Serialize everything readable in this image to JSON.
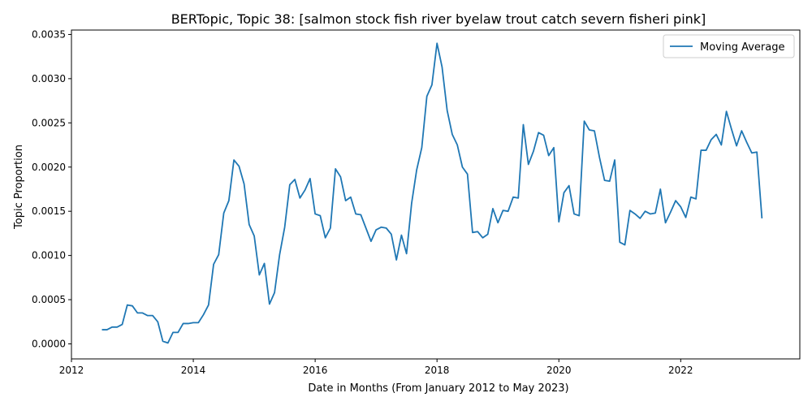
{
  "chart_data": {
    "type": "line",
    "title": "BERTopic, Topic 38: [salmon stock fish river byelaw trout catch severn fisheri pink]",
    "xlabel": "Date in Months (From January 2012 to May 2023)",
    "ylabel": "Topic Proportion",
    "xlim": [
      "2012-01-01",
      "2023-12-15"
    ],
    "ylim": [
      -0.00017,
      0.00355
    ],
    "x_ticks": [
      "2012",
      "2014",
      "2016",
      "2018",
      "2020",
      "2022"
    ],
    "y_ticks": [
      "0.0000",
      "0.0005",
      "0.0010",
      "0.0015",
      "0.0020",
      "0.0025",
      "0.0030",
      "0.0035"
    ],
    "grid": false,
    "legend": {
      "position": "top-right",
      "entries": [
        "Moving Average"
      ]
    },
    "series": [
      {
        "name": "Moving Average",
        "color": "#1f77b4",
        "x": [
          "2012-07",
          "2012-08",
          "2012-09",
          "2012-10",
          "2012-11",
          "2012-12",
          "2013-01",
          "2013-02",
          "2013-03",
          "2013-04",
          "2013-05",
          "2013-06",
          "2013-07",
          "2013-08",
          "2013-09",
          "2013-10",
          "2013-11",
          "2013-12",
          "2014-01",
          "2014-02",
          "2014-03",
          "2014-04",
          "2014-05",
          "2014-06",
          "2014-07",
          "2014-08",
          "2014-09",
          "2014-10",
          "2014-11",
          "2014-12",
          "2015-01",
          "2015-02",
          "2015-03",
          "2015-04",
          "2015-05",
          "2015-06",
          "2015-07",
          "2015-08",
          "2015-09",
          "2015-10",
          "2015-11",
          "2015-12",
          "2016-01",
          "2016-02",
          "2016-03",
          "2016-04",
          "2016-05",
          "2016-06",
          "2016-07",
          "2016-08",
          "2016-09",
          "2016-10",
          "2016-11",
          "2016-12",
          "2017-01",
          "2017-02",
          "2017-03",
          "2017-04",
          "2017-05",
          "2017-06",
          "2017-07",
          "2017-08",
          "2017-09",
          "2017-10",
          "2017-11",
          "2017-12",
          "2018-01",
          "2018-02",
          "2018-03",
          "2018-04",
          "2018-05",
          "2018-06",
          "2018-07",
          "2018-08",
          "2018-09",
          "2018-10",
          "2018-11",
          "2018-12",
          "2019-01",
          "2019-02",
          "2019-03",
          "2019-04",
          "2019-05",
          "2019-06",
          "2019-07",
          "2019-08",
          "2019-09",
          "2019-10",
          "2019-11",
          "2019-12",
          "2020-01",
          "2020-02",
          "2020-03",
          "2020-04",
          "2020-05",
          "2020-06",
          "2020-07",
          "2020-08",
          "2020-09",
          "2020-10",
          "2020-11",
          "2020-12",
          "2021-01",
          "2021-02",
          "2021-03",
          "2021-04",
          "2021-05",
          "2021-06",
          "2021-07",
          "2021-08",
          "2021-09",
          "2021-10",
          "2021-11",
          "2021-12",
          "2022-01",
          "2022-02",
          "2022-03",
          "2022-04",
          "2022-05",
          "2022-06",
          "2022-07",
          "2022-08",
          "2022-09",
          "2022-10",
          "2022-11",
          "2022-12",
          "2023-01",
          "2023-02",
          "2023-03",
          "2023-04",
          "2023-05"
        ],
        "y": [
          0.00016,
          0.00016,
          0.00019,
          0.00019,
          0.00022,
          0.00044,
          0.00043,
          0.00035,
          0.00035,
          0.00032,
          0.00032,
          0.00025,
          3e-05,
          1e-05,
          0.00013,
          0.00013,
          0.00023,
          0.00023,
          0.00024,
          0.00024,
          0.00033,
          0.00044,
          0.0009,
          0.00101,
          0.00148,
          0.00162,
          0.00208,
          0.00201,
          0.00181,
          0.00135,
          0.00122,
          0.00078,
          0.00091,
          0.00045,
          0.00058,
          0.00101,
          0.00132,
          0.0018,
          0.00186,
          0.00165,
          0.00174,
          0.00187,
          0.00147,
          0.00145,
          0.0012,
          0.00131,
          0.00198,
          0.00189,
          0.00162,
          0.00166,
          0.00147,
          0.00146,
          0.00131,
          0.00116,
          0.00129,
          0.00132,
          0.00131,
          0.00124,
          0.00095,
          0.00123,
          0.00102,
          0.00159,
          0.00197,
          0.00222,
          0.0028,
          0.00293,
          0.0034,
          0.00313,
          0.00264,
          0.00237,
          0.00225,
          0.002,
          0.00192,
          0.00126,
          0.00127,
          0.0012,
          0.00124,
          0.00153,
          0.00137,
          0.00151,
          0.0015,
          0.00166,
          0.00165,
          0.00248,
          0.00203,
          0.00218,
          0.00239,
          0.00236,
          0.00213,
          0.00222,
          0.00138,
          0.00171,
          0.00179,
          0.00147,
          0.00145,
          0.00252,
          0.00242,
          0.00241,
          0.00211,
          0.00185,
          0.00184,
          0.00208,
          0.00115,
          0.00112,
          0.00151,
          0.00147,
          0.00142,
          0.0015,
          0.00147,
          0.00148,
          0.00175,
          0.00137,
          0.00149,
          0.00162,
          0.00155,
          0.00143,
          0.00166,
          0.00164,
          0.00219,
          0.00219,
          0.00231,
          0.00237,
          0.00225,
          0.00263,
          0.00243,
          0.00224,
          0.00241,
          0.00228,
          0.00216,
          0.00217,
          0.00142
        ]
      }
    ]
  }
}
